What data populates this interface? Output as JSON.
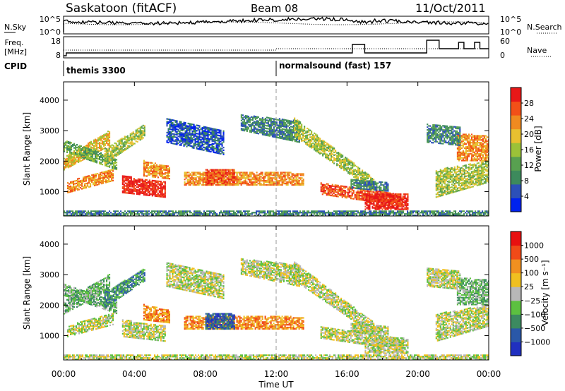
{
  "header": {
    "station": "Saskatoon (fitACF)",
    "beam": "Beam 08",
    "date": "11/Oct/2011"
  },
  "strip_panel": {
    "nsky_label": "N.Sky",
    "nsky_ticks": [
      "10^5",
      "10^0"
    ],
    "nsearch_label": "N.Search",
    "nsearch_ticks": [
      "10^5",
      "10^0"
    ],
    "freq_label_line1": "Freq.",
    "freq_label_line2": "[MHz]",
    "freq_ticks": [
      "18",
      "8"
    ],
    "nave_label": "Nave",
    "nave_ticks": [
      "60",
      "0"
    ],
    "cpid_label": "CPID",
    "cpid_segments": [
      {
        "text": "themis 3300",
        "start_hour": 0
      },
      {
        "text": "normalsound (fast) 157",
        "start_hour": 12
      }
    ]
  },
  "chart_data": [
    {
      "type": "heatmap",
      "panel": "power",
      "ylabel": "Slant Range [km]",
      "xlabel": "",
      "ylim": [
        200,
        4600
      ],
      "xlim": [
        0,
        24
      ],
      "yticks": [
        1000,
        2000,
        3000,
        4000
      ],
      "colorbar": {
        "label": "Power [dB]",
        "ticks": [
          "4",
          "8",
          "12",
          "16",
          "20",
          "24",
          "28"
        ],
        "colors": [
          "#0022ee",
          "#2c50b8",
          "#3d8a5c",
          "#58a050",
          "#9bc238",
          "#e8c030",
          "#f08a20",
          "#f25018",
          "#e81818"
        ]
      }
    },
    {
      "type": "heatmap",
      "panel": "velocity",
      "ylabel": "Slant Range [km]",
      "xlabel": "Time UT",
      "ylim": [
        200,
        4600
      ],
      "xlim": [
        0,
        24
      ],
      "yticks": [
        1000,
        2000,
        3000,
        4000
      ],
      "xticks": [
        "00:00",
        "04:00",
        "08:00",
        "12:00",
        "16:00",
        "20:00",
        "00:00"
      ],
      "colorbar": {
        "label": "Velocity [m s⁻¹]",
        "ticks": [
          "1000",
          "500",
          "100",
          "25",
          "−25",
          "−100",
          "−500",
          "−1000"
        ],
        "colors": [
          "#2030c0",
          "#2a58a8",
          "#3c8a60",
          "#5cc040",
          "#b8b8b8",
          "#f0c020",
          "#f09020",
          "#f04a18",
          "#e81010"
        ]
      }
    }
  ]
}
